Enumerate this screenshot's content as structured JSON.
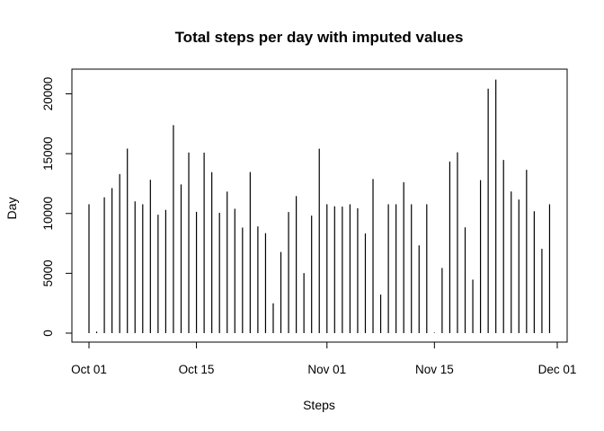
{
  "chart_data": {
    "type": "bar",
    "style": "histogram-spikes",
    "title": "Total steps per day with imputed values",
    "xlabel": "Steps",
    "ylabel": "Day",
    "x": [
      "2012-10-01",
      "2012-10-02",
      "2012-10-03",
      "2012-10-04",
      "2012-10-05",
      "2012-10-06",
      "2012-10-07",
      "2012-10-08",
      "2012-10-09",
      "2012-10-10",
      "2012-10-11",
      "2012-10-12",
      "2012-10-13",
      "2012-10-14",
      "2012-10-15",
      "2012-10-16",
      "2012-10-17",
      "2012-10-18",
      "2012-10-19",
      "2012-10-20",
      "2012-10-21",
      "2012-10-22",
      "2012-10-23",
      "2012-10-24",
      "2012-10-25",
      "2012-10-26",
      "2012-10-27",
      "2012-10-28",
      "2012-10-29",
      "2012-10-30",
      "2012-10-31",
      "2012-11-01",
      "2012-11-02",
      "2012-11-03",
      "2012-11-04",
      "2012-11-05",
      "2012-11-06",
      "2012-11-07",
      "2012-11-08",
      "2012-11-09",
      "2012-11-10",
      "2012-11-11",
      "2012-11-12",
      "2012-11-13",
      "2012-11-14",
      "2012-11-15",
      "2012-11-16",
      "2012-11-17",
      "2012-11-18",
      "2012-11-19",
      "2012-11-20",
      "2012-11-21",
      "2012-11-22",
      "2012-11-23",
      "2012-11-24",
      "2012-11-25",
      "2012-11-26",
      "2012-11-27",
      "2012-11-28",
      "2012-11-29",
      "2012-11-30"
    ],
    "values": [
      10766,
      126,
      11352,
      12116,
      13294,
      15420,
      11015,
      10766,
      12811,
      9900,
      10304,
      17382,
      12426,
      15098,
      10139,
      15084,
      13452,
      10056,
      11829,
      10395,
      8821,
      13460,
      8918,
      8355,
      2492,
      6778,
      10119,
      11458,
      5018,
      9819,
      15414,
      10766,
      10600,
      10571,
      10766,
      10439,
      8334,
      12883,
      3219,
      10766,
      10766,
      12608,
      10765,
      7336,
      10766,
      41,
      5441,
      14339,
      15110,
      8841,
      4472,
      12787,
      20427,
      21194,
      14478,
      11834,
      11162,
      13646,
      10183,
      7047,
      10766
    ],
    "xticks": [
      "Oct 01",
      "Oct 15",
      "Nov 01",
      "Nov 15",
      "Dec 01"
    ],
    "yticks": [
      "0",
      "5000",
      "10000",
      "15000",
      "20000"
    ],
    "xlim": [
      "2012-09-30",
      "2012-12-01"
    ],
    "ylim": [
      0,
      21900
    ],
    "grid": false,
    "legend": "none",
    "colors": {
      "line": "#000000",
      "background": "#ffffff"
    }
  }
}
